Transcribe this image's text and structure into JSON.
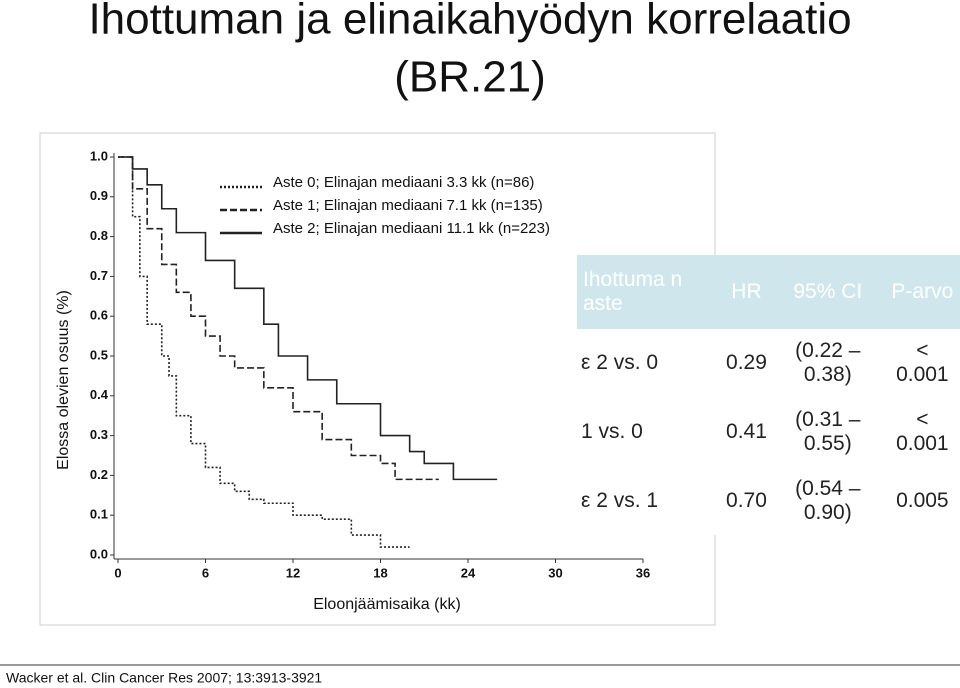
{
  "slide": {
    "title_line1": "Ihottuman ja elinaikahyödyn korrelaatio",
    "title_line2": "(BR.21)",
    "citation": "Wacker et al. Clin Cancer Res 2007; 13:3913-3921"
  },
  "table": {
    "header": [
      "Ihottuma n aste",
      "HR",
      "95% CI",
      "P-arvo"
    ],
    "rows": [
      [
        "ε 2 vs. 0",
        "0.29",
        "(0.22 – 0.38)",
        "< 0.001"
      ],
      [
        "1 vs. 0",
        "0.41",
        "(0.31 – 0.55)",
        "< 0.001"
      ],
      [
        "ε 2 vs. 1",
        "0.70",
        "(0.54 – 0.90)",
        "0.005"
      ]
    ]
  },
  "chart_data": {
    "type": "step",
    "x_label": "Eloonjäämisaika (kk)",
    "y_label": "Elossa olevien osuus (%)",
    "xlim": [
      0,
      36
    ],
    "xticks": [
      0,
      6,
      12,
      18,
      24,
      30,
      36
    ],
    "ylim": [
      0,
      1
    ],
    "yticks": [
      {
        "value": 0,
        "label": "0.0"
      },
      0.1,
      0.2,
      0.3,
      0.4,
      0.5,
      0.6,
      0.7,
      0.8,
      0.9,
      {
        "value": 1,
        "label": "1.0"
      }
    ],
    "series": [
      {
        "name": "Aste 0; Elinajan mediaani 3.3 kk (n=86)",
        "color": "#222",
        "dash": "2,2",
        "x": [
          0,
          1,
          1.5,
          2,
          3,
          3.5,
          4,
          5,
          6,
          7,
          8,
          9,
          10,
          12,
          14,
          16,
          18,
          20
        ],
        "values": [
          1,
          0.85,
          0.7,
          0.58,
          0.5,
          0.45,
          0.35,
          0.28,
          0.22,
          0.18,
          0.16,
          0.14,
          0.13,
          0.1,
          0.09,
          0.05,
          0.02,
          0.02
        ]
      },
      {
        "name": "Aste 1; Elinajan mediaani 7.1 kk (n=135)",
        "color": "#222",
        "dash": "7,3",
        "x": [
          0,
          1,
          2,
          3,
          4,
          5,
          6,
          7,
          8,
          10,
          12,
          14,
          16,
          18,
          19,
          22
        ],
        "values": [
          1,
          0.92,
          0.82,
          0.73,
          0.66,
          0.6,
          0.55,
          0.5,
          0.47,
          0.42,
          0.36,
          0.29,
          0.25,
          0.23,
          0.19,
          0.19
        ]
      },
      {
        "name": "Aste 2; Elinajan mediaani 11.1 kk (n=223)",
        "color": "#222",
        "dash": "none",
        "x": [
          0,
          1,
          2,
          3,
          4,
          6,
          8,
          10,
          11,
          13,
          15,
          18,
          20,
          21,
          23,
          26
        ],
        "values": [
          1,
          0.97,
          0.93,
          0.87,
          0.81,
          0.74,
          0.67,
          0.58,
          0.5,
          0.44,
          0.38,
          0.3,
          0.26,
          0.23,
          0.19,
          0.19
        ]
      }
    ]
  }
}
